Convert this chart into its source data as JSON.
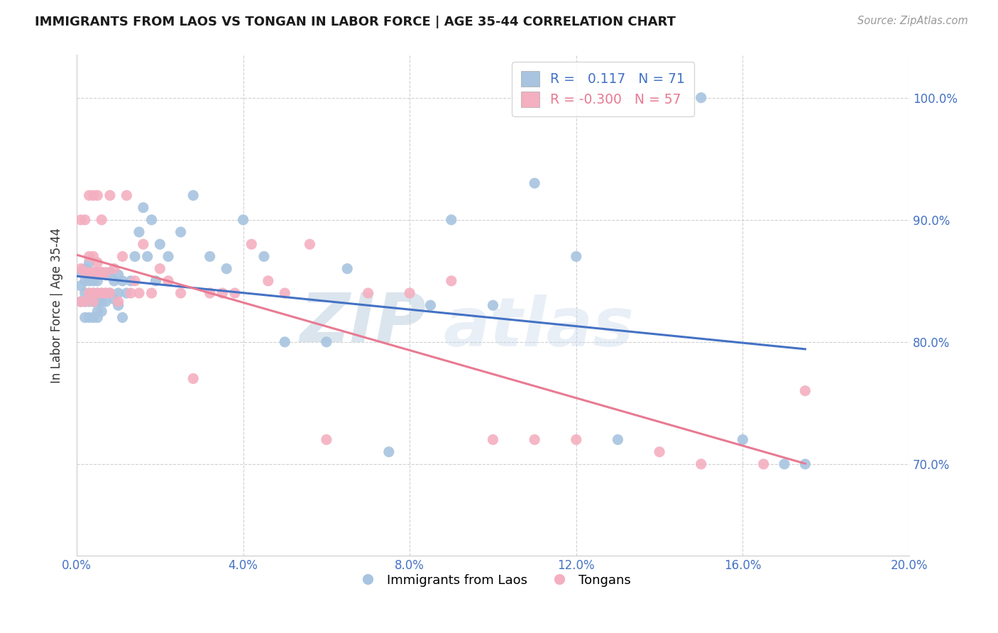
{
  "title": "IMMIGRANTS FROM LAOS VS TONGAN IN LABOR FORCE | AGE 35-44 CORRELATION CHART",
  "source": "Source: ZipAtlas.com",
  "ylabel": "In Labor Force | Age 35-44",
  "xlim": [
    0.0,
    0.2
  ],
  "ylim": [
    0.625,
    1.035
  ],
  "xticks": [
    0.0,
    0.04,
    0.08,
    0.12,
    0.16,
    0.2
  ],
  "yticks": [
    0.7,
    0.8,
    0.9,
    1.0
  ],
  "ytick_labels": [
    "70.0%",
    "80.0%",
    "90.0%",
    "100.0%"
  ],
  "xtick_labels": [
    "0.0%",
    "4.0%",
    "8.0%",
    "12.0%",
    "16.0%",
    "20.0%"
  ],
  "legend_1_label": "R =   0.117   N = 71",
  "legend_2_label": "R = -0.300   N = 57",
  "legend_label_bottom_1": "Immigrants from Laos",
  "legend_label_bottom_2": "Tongans",
  "blue_color": "#a8c4e0",
  "pink_color": "#f4afc0",
  "blue_line_color": "#4472c4",
  "pink_line_color": "#e87a92",
  "watermark_zip": "ZIP",
  "watermark_atlas": "atlas",
  "blue_x": [
    0.001,
    0.001,
    0.001,
    0.002,
    0.002,
    0.002,
    0.002,
    0.002,
    0.003,
    0.003,
    0.003,
    0.003,
    0.003,
    0.003,
    0.004,
    0.004,
    0.004,
    0.004,
    0.004,
    0.005,
    0.005,
    0.005,
    0.005,
    0.005,
    0.005,
    0.006,
    0.006,
    0.006,
    0.006,
    0.007,
    0.007,
    0.007,
    0.008,
    0.008,
    0.009,
    0.009,
    0.01,
    0.01,
    0.01,
    0.011,
    0.011,
    0.012,
    0.013,
    0.014,
    0.015,
    0.016,
    0.017,
    0.018,
    0.019,
    0.02,
    0.022,
    0.025,
    0.028,
    0.032,
    0.036,
    0.04,
    0.045,
    0.05,
    0.06,
    0.065,
    0.075,
    0.085,
    0.09,
    0.1,
    0.11,
    0.12,
    0.13,
    0.15,
    0.16,
    0.17,
    0.175
  ],
  "blue_y": [
    0.833,
    0.846,
    0.857,
    0.82,
    0.833,
    0.84,
    0.85,
    0.86,
    0.82,
    0.833,
    0.84,
    0.85,
    0.857,
    0.865,
    0.82,
    0.833,
    0.84,
    0.85,
    0.857,
    0.82,
    0.825,
    0.833,
    0.84,
    0.85,
    0.857,
    0.825,
    0.833,
    0.84,
    0.857,
    0.833,
    0.84,
    0.855,
    0.84,
    0.857,
    0.835,
    0.85,
    0.83,
    0.84,
    0.855,
    0.82,
    0.85,
    0.84,
    0.85,
    0.87,
    0.89,
    0.91,
    0.87,
    0.9,
    0.85,
    0.88,
    0.87,
    0.89,
    0.92,
    0.87,
    0.86,
    0.9,
    0.87,
    0.8,
    0.8,
    0.86,
    0.71,
    0.83,
    0.9,
    0.83,
    0.93,
    0.87,
    0.72,
    1.0,
    0.72,
    0.7,
    0.7
  ],
  "pink_x": [
    0.001,
    0.001,
    0.001,
    0.002,
    0.002,
    0.002,
    0.003,
    0.003,
    0.003,
    0.003,
    0.004,
    0.004,
    0.004,
    0.004,
    0.004,
    0.005,
    0.005,
    0.005,
    0.005,
    0.006,
    0.006,
    0.006,
    0.007,
    0.007,
    0.008,
    0.008,
    0.009,
    0.01,
    0.011,
    0.012,
    0.013,
    0.014,
    0.015,
    0.016,
    0.018,
    0.02,
    0.022,
    0.025,
    0.028,
    0.032,
    0.035,
    0.038,
    0.042,
    0.046,
    0.05,
    0.056,
    0.06,
    0.07,
    0.08,
    0.09,
    0.1,
    0.11,
    0.12,
    0.14,
    0.15,
    0.165,
    0.175
  ],
  "pink_y": [
    0.833,
    0.86,
    0.9,
    0.833,
    0.857,
    0.9,
    0.84,
    0.857,
    0.87,
    0.92,
    0.833,
    0.84,
    0.857,
    0.87,
    0.92,
    0.84,
    0.857,
    0.865,
    0.92,
    0.84,
    0.857,
    0.9,
    0.84,
    0.857,
    0.84,
    0.92,
    0.86,
    0.833,
    0.87,
    0.92,
    0.84,
    0.85,
    0.84,
    0.88,
    0.84,
    0.86,
    0.85,
    0.84,
    0.77,
    0.84,
    0.84,
    0.84,
    0.88,
    0.85,
    0.84,
    0.88,
    0.72,
    0.84,
    0.84,
    0.85,
    0.72,
    0.72,
    0.72,
    0.71,
    0.7,
    0.7,
    0.76
  ],
  "blue_R": 0.117,
  "blue_N": 71,
  "pink_R": -0.3,
  "pink_N": 57,
  "grid_color": "#cccccc",
  "background_color": "#ffffff"
}
